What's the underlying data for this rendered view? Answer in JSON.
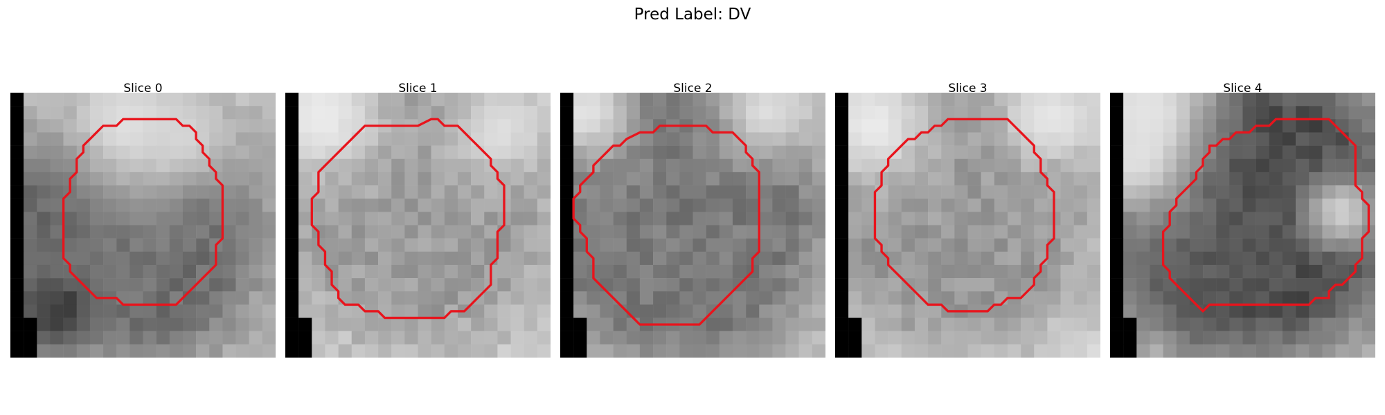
{
  "figure": {
    "suptitle": "Pred Label: DV",
    "contour_color": "#e8141c"
  },
  "panels": [
    {
      "title": "Slice 0",
      "seed": 11,
      "blob": {
        "cx": 9.7,
        "cy": 10.8,
        "r": 6.2,
        "tone": 0.44
      },
      "extra_dark": [
        [
          2,
          12,
          4.2,
          0.5
        ],
        [
          3,
          9,
          3.0,
          0.4
        ],
        [
          3.5,
          16.5,
          1.8,
          0.25
        ]
      ],
      "bright_top": [
        [
          9,
          2.5,
          3.5,
          0.92
        ],
        [
          13,
          3.5,
          2.5,
          0.85
        ]
      ],
      "bg_tone": 0.78,
      "contour": [
        [
          8.0,
          1.0
        ],
        [
          11.5,
          1.0
        ],
        [
          12.0,
          1.5
        ],
        [
          12.5,
          1.5
        ],
        [
          13.0,
          2.0
        ],
        [
          13.0,
          2.5
        ],
        [
          13.5,
          3.0
        ],
        [
          13.5,
          3.5
        ],
        [
          14.0,
          4.0
        ],
        [
          14.0,
          4.5
        ],
        [
          14.5,
          5.0
        ],
        [
          14.5,
          5.5
        ],
        [
          15.0,
          6.0
        ],
        [
          15.0,
          10.0
        ],
        [
          14.5,
          10.5
        ],
        [
          14.5,
          12.0
        ],
        [
          14.0,
          12.5
        ],
        [
          13.5,
          13.0
        ],
        [
          13.0,
          13.5
        ],
        [
          12.5,
          14.0
        ],
        [
          12.0,
          14.5
        ],
        [
          11.5,
          15.0
        ],
        [
          7.5,
          15.0
        ],
        [
          7.0,
          14.5
        ],
        [
          5.5,
          14.5
        ],
        [
          5.0,
          14.0
        ],
        [
          4.5,
          13.5
        ],
        [
          4.0,
          13.0
        ],
        [
          3.5,
          12.5
        ],
        [
          3.5,
          12.0
        ],
        [
          3.0,
          11.5
        ],
        [
          3.0,
          7.0
        ],
        [
          3.5,
          6.5
        ],
        [
          3.5,
          5.5
        ],
        [
          4.0,
          5.0
        ],
        [
          4.0,
          4.0
        ],
        [
          4.5,
          3.5
        ],
        [
          4.5,
          3.0
        ],
        [
          5.0,
          2.5
        ],
        [
          5.5,
          2.0
        ],
        [
          6.0,
          1.5
        ],
        [
          7.0,
          1.5
        ],
        [
          7.5,
          1.0
        ]
      ],
      "black_mask": "c0"
    },
    {
      "title": "Slice 1",
      "seed": 23,
      "blob": {
        "cx": 10.0,
        "cy": 8.6,
        "r": 7.2,
        "tone": 0.62
      },
      "extra_dark": [],
      "bright_top": [
        [
          3,
          2,
          3,
          0.95
        ],
        [
          16,
          3,
          2.5,
          0.9
        ]
      ],
      "bg_tone": 0.86,
      "contour": [
        [
          9.0,
          1.5
        ],
        [
          10.0,
          1.0
        ],
        [
          10.5,
          1.0
        ],
        [
          11.0,
          1.5
        ],
        [
          12.0,
          1.5
        ],
        [
          12.5,
          2.0
        ],
        [
          13.0,
          2.5
        ],
        [
          13.5,
          3.0
        ],
        [
          14.0,
          3.5
        ],
        [
          14.5,
          4.0
        ],
        [
          14.5,
          4.5
        ],
        [
          15.0,
          5.0
        ],
        [
          15.0,
          5.5
        ],
        [
          15.5,
          6.0
        ],
        [
          15.5,
          9.0
        ],
        [
          15.0,
          9.5
        ],
        [
          15.0,
          11.5
        ],
        [
          14.5,
          12.0
        ],
        [
          14.5,
          13.5
        ],
        [
          14.0,
          14.0
        ],
        [
          13.5,
          14.5
        ],
        [
          13.0,
          15.0
        ],
        [
          12.5,
          15.5
        ],
        [
          11.5,
          15.5
        ],
        [
          11.0,
          16.0
        ],
        [
          6.5,
          16.0
        ],
        [
          6.0,
          15.5
        ],
        [
          5.0,
          15.5
        ],
        [
          4.5,
          15.0
        ],
        [
          3.5,
          15.0
        ],
        [
          3.0,
          14.5
        ],
        [
          3.0,
          14.0
        ],
        [
          2.5,
          13.5
        ],
        [
          2.5,
          12.5
        ],
        [
          2.0,
          12.0
        ],
        [
          2.0,
          11.0
        ],
        [
          1.5,
          10.5
        ],
        [
          1.5,
          9.5
        ],
        [
          1.0,
          9.0
        ],
        [
          1.0,
          7.0
        ],
        [
          1.5,
          6.5
        ],
        [
          1.5,
          5.0
        ],
        [
          2.0,
          4.5
        ],
        [
          2.5,
          4.0
        ],
        [
          3.0,
          3.5
        ],
        [
          3.5,
          3.0
        ],
        [
          4.0,
          2.5
        ],
        [
          4.5,
          2.0
        ],
        [
          5.0,
          1.5
        ]
      ],
      "black_mask": "c0"
    },
    {
      "title": "Slice 2",
      "seed": 37,
      "blob": {
        "cx": 8.8,
        "cy": 9.2,
        "r": 7.8,
        "tone": 0.48
      },
      "extra_dark": [
        [
          7,
          1,
          1.6,
          0.45
        ]
      ],
      "bright_top": [
        [
          2,
          1.5,
          2.5,
          0.93
        ],
        [
          15.5,
          1.5,
          2.5,
          0.9
        ]
      ],
      "bg_tone": 0.86,
      "contour": [
        [
          4.0,
          2.5
        ],
        [
          5.0,
          2.0
        ],
        [
          6.0,
          2.0
        ],
        [
          6.5,
          1.5
        ],
        [
          10.0,
          1.5
        ],
        [
          10.5,
          2.0
        ],
        [
          12.0,
          2.0
        ],
        [
          12.5,
          2.5
        ],
        [
          13.0,
          3.0
        ],
        [
          13.0,
          3.5
        ],
        [
          13.5,
          4.0
        ],
        [
          13.5,
          4.5
        ],
        [
          14.0,
          5.0
        ],
        [
          14.0,
          11.0
        ],
        [
          13.5,
          11.5
        ],
        [
          13.5,
          12.5
        ],
        [
          13.0,
          13.0
        ],
        [
          12.5,
          13.5
        ],
        [
          12.0,
          14.0
        ],
        [
          11.5,
          14.5
        ],
        [
          11.0,
          15.0
        ],
        [
          10.5,
          15.5
        ],
        [
          10.0,
          16.0
        ],
        [
          9.5,
          16.5
        ],
        [
          5.0,
          16.5
        ],
        [
          4.5,
          16.0
        ],
        [
          4.0,
          15.5
        ],
        [
          3.5,
          15.0
        ],
        [
          3.0,
          14.5
        ],
        [
          2.5,
          14.0
        ],
        [
          2.0,
          13.5
        ],
        [
          1.5,
          13.0
        ],
        [
          1.5,
          11.5
        ],
        [
          1.0,
          11.0
        ],
        [
          1.0,
          10.0
        ],
        [
          0.5,
          9.5
        ],
        [
          0.5,
          9.0
        ],
        [
          0.0,
          8.5
        ],
        [
          0.0,
          7.0
        ],
        [
          0.5,
          6.5
        ],
        [
          0.5,
          6.0
        ],
        [
          1.0,
          5.5
        ],
        [
          1.5,
          5.0
        ],
        [
          1.5,
          4.5
        ],
        [
          2.0,
          4.0
        ],
        [
          2.5,
          3.5
        ],
        [
          3.0,
          3.0
        ],
        [
          3.5,
          3.0
        ]
      ],
      "black_mask": "c0"
    },
    {
      "title": "Slice 3",
      "seed": 53,
      "blob": {
        "cx": 9.3,
        "cy": 8.9,
        "r": 7.0,
        "tone": 0.6
      },
      "extra_dark": [],
      "bright_top": [
        [
          3,
          2.5,
          3.0,
          0.95
        ],
        [
          16,
          2,
          2.5,
          0.93
        ]
      ],
      "bg_tone": 0.88,
      "contour": [
        [
          6.0,
          2.0
        ],
        [
          6.5,
          1.5
        ],
        [
          7.0,
          1.5
        ],
        [
          7.5,
          1.0
        ],
        [
          12.0,
          1.0
        ],
        [
          12.5,
          1.5
        ],
        [
          13.0,
          2.0
        ],
        [
          13.5,
          2.5
        ],
        [
          14.0,
          3.0
        ],
        [
          14.0,
          3.5
        ],
        [
          14.5,
          4.0
        ],
        [
          14.5,
          5.0
        ],
        [
          15.0,
          5.5
        ],
        [
          15.0,
          6.0
        ],
        [
          15.5,
          6.5
        ],
        [
          15.5,
          10.0
        ],
        [
          15.0,
          10.5
        ],
        [
          15.0,
          11.5
        ],
        [
          14.5,
          12.0
        ],
        [
          14.5,
          12.5
        ],
        [
          14.0,
          13.0
        ],
        [
          14.0,
          13.5
        ],
        [
          13.5,
          14.0
        ],
        [
          13.0,
          14.5
        ],
        [
          12.0,
          14.5
        ],
        [
          11.5,
          15.0
        ],
        [
          11.0,
          15.0
        ],
        [
          10.5,
          15.5
        ],
        [
          7.5,
          15.5
        ],
        [
          7.0,
          15.0
        ],
        [
          6.0,
          15.0
        ],
        [
          5.5,
          14.5
        ],
        [
          5.0,
          14.0
        ],
        [
          4.5,
          13.5
        ],
        [
          4.0,
          13.0
        ],
        [
          3.5,
          12.5
        ],
        [
          3.0,
          12.0
        ],
        [
          3.0,
          11.5
        ],
        [
          2.5,
          11.0
        ],
        [
          2.5,
          10.5
        ],
        [
          2.0,
          10.0
        ],
        [
          2.0,
          6.5
        ],
        [
          2.5,
          6.0
        ],
        [
          2.5,
          5.0
        ],
        [
          3.0,
          4.5
        ],
        [
          3.0,
          4.0
        ],
        [
          3.5,
          3.5
        ],
        [
          4.0,
          3.0
        ],
        [
          4.5,
          2.5
        ],
        [
          5.0,
          2.5
        ],
        [
          5.5,
          2.0
        ]
      ],
      "black_mask": "c0"
    },
    {
      "title": "Slice 4",
      "seed": 71,
      "blob": {
        "cx": 11.2,
        "cy": 8.8,
        "r": 7.0,
        "tone": 0.3
      },
      "extra_dark": [
        [
          4,
          11,
          3.0,
          0.45
        ],
        [
          7,
          14,
          2.5,
          0.35
        ]
      ],
      "bright_top": [
        [
          3,
          1.5,
          3.5,
          0.93
        ],
        [
          2,
          5,
          2.5,
          0.9
        ],
        [
          17.5,
          9,
          2,
          0.88
        ]
      ],
      "bg_tone": 0.8,
      "contour": [
        [
          7.0,
          3.0
        ],
        [
          7.5,
          2.5
        ],
        [
          8.0,
          2.5
        ],
        [
          8.5,
          2.0
        ],
        [
          9.5,
          2.0
        ],
        [
          10.0,
          1.5
        ],
        [
          11.0,
          1.5
        ],
        [
          11.5,
          1.0
        ],
        [
          15.5,
          1.0
        ],
        [
          16.0,
          1.5
        ],
        [
          16.5,
          2.0
        ],
        [
          17.0,
          2.5
        ],
        [
          17.5,
          3.0
        ],
        [
          17.5,
          6.0
        ],
        [
          18.0,
          6.5
        ],
        [
          18.0,
          7.0
        ],
        [
          18.5,
          7.5
        ],
        [
          18.5,
          9.5
        ],
        [
          18.0,
          10.0
        ],
        [
          18.0,
          11.5
        ],
        [
          17.5,
          12.0
        ],
        [
          17.5,
          12.5
        ],
        [
          17.0,
          13.0
        ],
        [
          16.5,
          13.5
        ],
        [
          16.0,
          13.5
        ],
        [
          15.5,
          14.0
        ],
        [
          15.5,
          14.5
        ],
        [
          14.5,
          14.5
        ],
        [
          14.0,
          15.0
        ],
        [
          6.5,
          15.0
        ],
        [
          6.0,
          15.5
        ],
        [
          5.5,
          15.0
        ],
        [
          5.0,
          14.5
        ],
        [
          4.5,
          14.0
        ],
        [
          4.0,
          13.5
        ],
        [
          3.5,
          13.0
        ],
        [
          3.5,
          12.5
        ],
        [
          3.0,
          12.0
        ],
        [
          3.0,
          9.5
        ],
        [
          3.5,
          9.0
        ],
        [
          3.5,
          8.0
        ],
        [
          4.0,
          7.5
        ],
        [
          4.0,
          7.0
        ],
        [
          4.5,
          6.5
        ],
        [
          5.0,
          6.0
        ],
        [
          5.5,
          5.5
        ],
        [
          5.5,
          5.0
        ],
        [
          6.0,
          4.5
        ],
        [
          6.0,
          4.0
        ],
        [
          6.5,
          3.5
        ],
        [
          6.5,
          3.0
        ]
      ],
      "black_mask": "c0"
    }
  ]
}
